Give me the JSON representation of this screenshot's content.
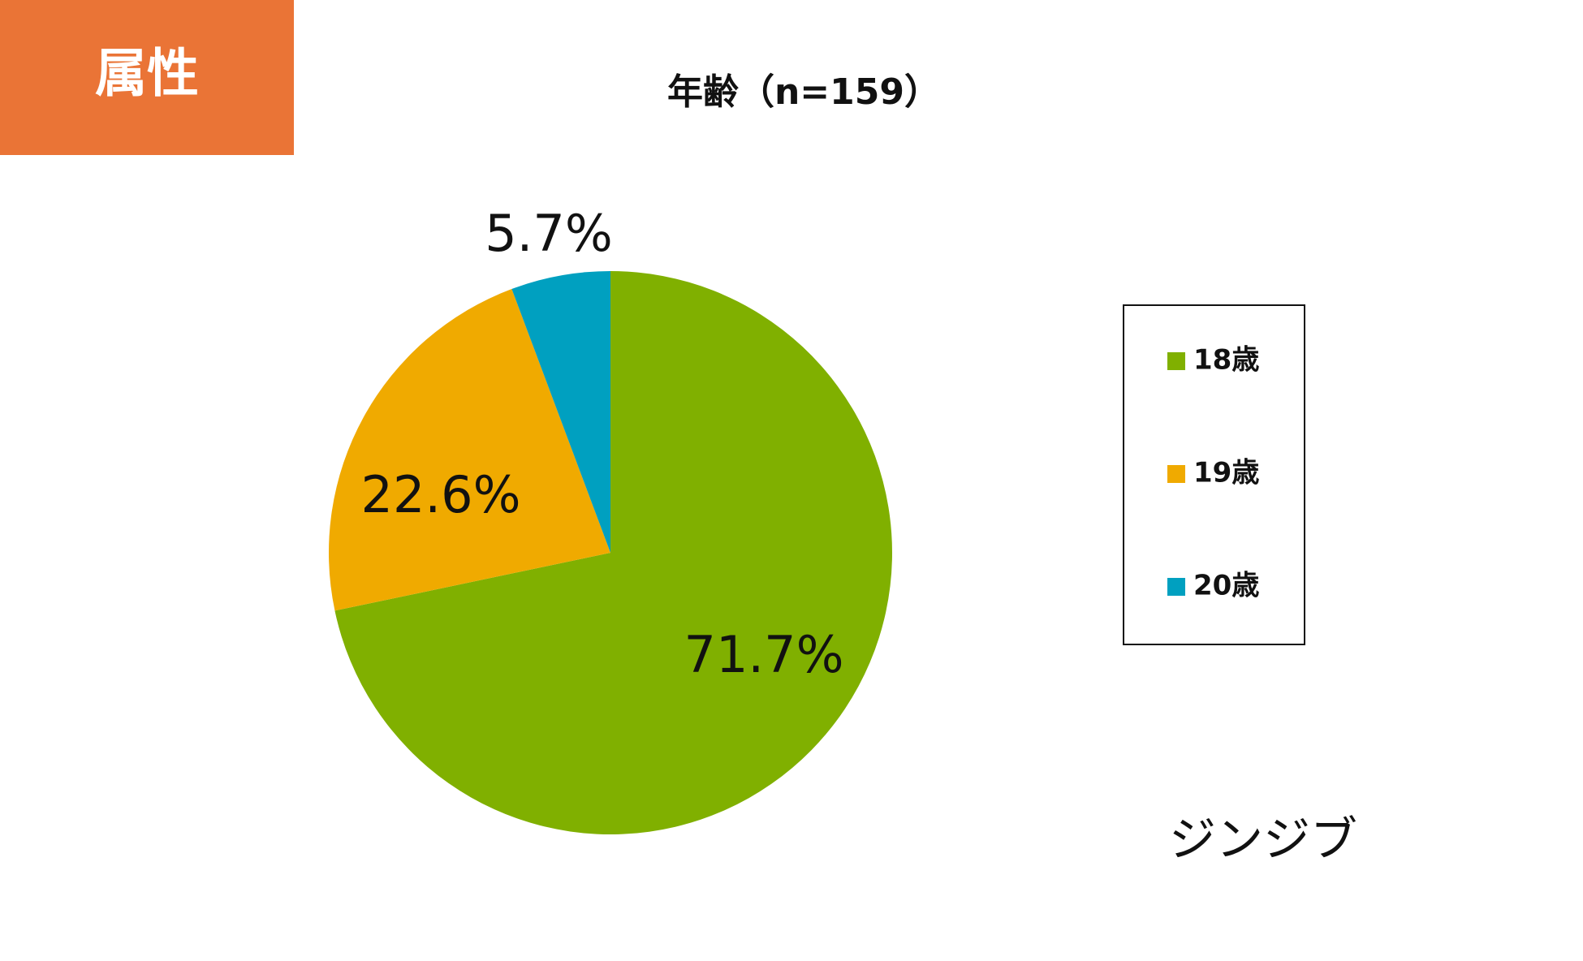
{
  "header": {
    "title": "属性"
  },
  "chart_data": {
    "type": "pie",
    "title": "年齢（n=159）",
    "categories": [
      "18歳",
      "19歳",
      "20歳"
    ],
    "values": [
      71.7,
      22.6,
      5.7
    ],
    "value_labels": [
      "71.7%",
      "22.6%",
      "5.7%"
    ],
    "colors": [
      "#80b000",
      "#f0aa00",
      "#00a0c0"
    ],
    "legend": "right"
  },
  "footer": {
    "logo": "ジンジブ"
  }
}
